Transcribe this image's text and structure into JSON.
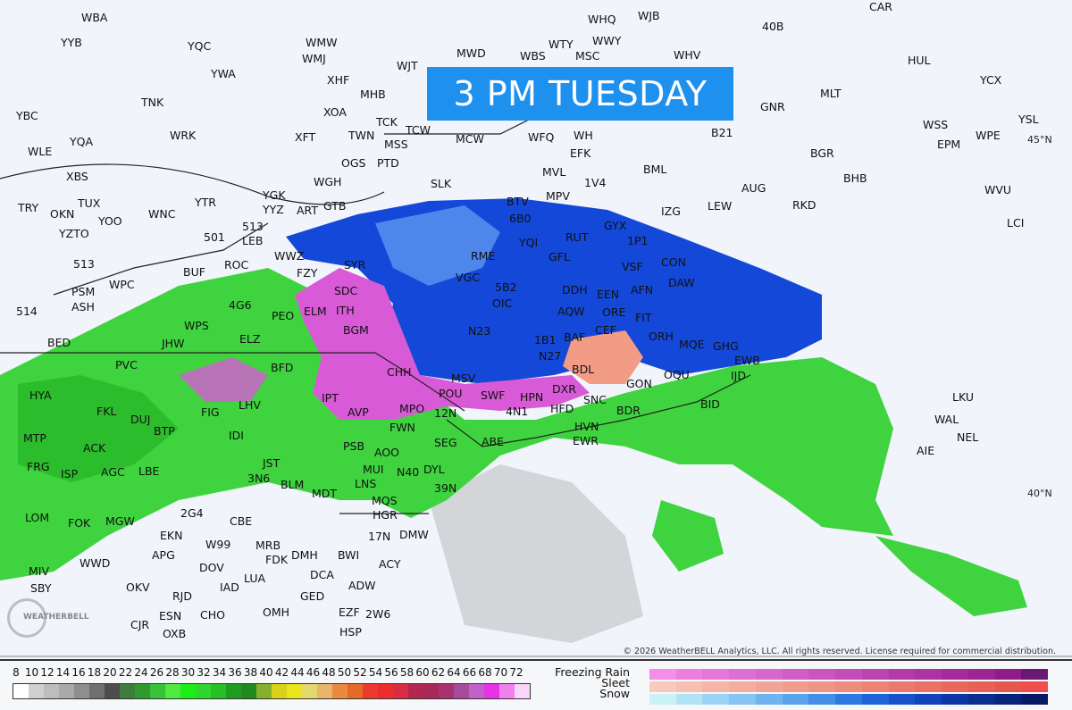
{
  "title": "3 PM TUESDAY",
  "copyright": "© 2026 WeatherBELL Analytics, LLC. All rights reserved. License required for commercial distribution.",
  "logo_text": "WeatherBELL",
  "latitude_labels": [
    "45°N",
    "40°N"
  ],
  "stations": [
    "WBA",
    "YYB",
    "YQC",
    "WMW",
    "WMJ",
    "YWA",
    "XHF",
    "MHB",
    "WJT",
    "MWD",
    "WHQ",
    "WJB",
    "WTY",
    "WWY",
    "WBS",
    "MSC",
    "WHV",
    "CAR",
    "40B",
    "HUL",
    "YCX",
    "TNK",
    "XOA",
    "TCK",
    "WH",
    "MLT",
    "GNR",
    "YSL",
    "YBC",
    "YQA",
    "WRK",
    "XFT",
    "TWN",
    "MSS",
    "TCW",
    "MCW",
    "WFQ",
    "EFK",
    "B21",
    "BGR",
    "WSS",
    "EPM",
    "WPE",
    "WLE",
    "XBS",
    "OGS",
    "PTD",
    "BML",
    "BHB",
    "WVU",
    "TRY",
    "OKN",
    "TUX",
    "YOO",
    "WNC",
    "YTR",
    "YGK",
    "WGH",
    "GTB",
    "SLK",
    "BTV",
    "MVL",
    "MPV",
    "1V4",
    "AUG",
    "LEW",
    "RKD",
    "YYZ",
    "YZTO",
    "ART",
    "513",
    "501",
    "6B0",
    "IZG",
    "GYX",
    "1P1",
    "LCI",
    "YQI",
    "RUT",
    "LEB",
    "513",
    "WWZ",
    "FZY",
    "SYR",
    "RME",
    "GFL",
    "VSF",
    "CON",
    "DAW",
    "PSM",
    "WPC",
    "BUF",
    "ROC",
    "SDC",
    "VGC",
    "5B2",
    "DDH",
    "EEN",
    "AFN",
    "ASH",
    "514",
    "WPS",
    "4G6",
    "PEO",
    "ITH",
    "OIC",
    "AQW",
    "ORE",
    "FIT",
    "BED",
    "JHW",
    "ELZ",
    "ELM",
    "BGM",
    "N23",
    "1B1",
    "BAF",
    "CEF",
    "ORH",
    "MQE",
    "GHG",
    "PVC",
    "BFD",
    "N27",
    "BDL",
    "IJD",
    "CHH",
    "MSV",
    "POU",
    "SWF",
    "DXR",
    "HFD",
    "SNC",
    "GON",
    "OQU",
    "EWB",
    "HYA",
    "FKL",
    "DUJ",
    "FIG",
    "LHV",
    "IPT",
    "AVP",
    "MPO",
    "FWN",
    "12N",
    "4N1",
    "HPN",
    "BDR",
    "HVN",
    "BID",
    "MTP",
    "ACK",
    "BTP",
    "IDI",
    "PSB",
    "SEG",
    "ABE",
    "EWR",
    "FRG",
    "ISP",
    "AGC",
    "LBE",
    "JST",
    "AOO",
    "MUI",
    "N40",
    "DYL",
    "39N",
    "3N6",
    "BLM",
    "MDT",
    "LNS",
    "MQS",
    "LOM",
    "FOK",
    "MGW",
    "2G4",
    "CBE",
    "HGR",
    "DMW",
    "17N",
    "ACY",
    "MIV",
    "WWD",
    "EKN",
    "W99",
    "MRB",
    "FDK",
    "DMH",
    "BWI",
    "APG",
    "DOV",
    "OKV",
    "IAD",
    "LUA",
    "DCA",
    "ADW",
    "RJD",
    "GED",
    "CJR",
    "ESN",
    "CHO",
    "OMH",
    "EZF",
    "2W6",
    "SBY",
    "OXB",
    "HSP",
    "LKU",
    "WAL",
    "NEL",
    "AIE"
  ],
  "dbz_legend": {
    "labels": [
      "8",
      "10",
      "12",
      "14",
      "16",
      "18",
      "20",
      "22",
      "24",
      "26",
      "28",
      "30",
      "32",
      "34",
      "36",
      "38",
      "40",
      "42",
      "44",
      "46",
      "48",
      "50",
      "52",
      "54",
      "56",
      "58",
      "60",
      "62",
      "64",
      "66",
      "68",
      "70",
      "72"
    ],
    "colors": [
      "#ffffff",
      "#cfcfcf",
      "#bdbdbd",
      "#a9a9a9",
      "#8e8e8e",
      "#6f6f6f",
      "#4d4d4d",
      "#3e7d3e",
      "#2f9a2f",
      "#39c139",
      "#4fe93f",
      "#19ee19",
      "#2dd62d",
      "#27bf27",
      "#209c20",
      "#208a20",
      "#87b02a",
      "#d9d11a",
      "#eae41c",
      "#e3d96b",
      "#e8b56a",
      "#e98a3c",
      "#e66a27",
      "#ec3a2c",
      "#ed2d2d",
      "#d92c43",
      "#b42550",
      "#a8285a",
      "#a93170",
      "#a84a9b",
      "#c160c6",
      "#e633e6",
      "#f07ff0",
      "#f9d6f9"
    ]
  },
  "ptype_legend": {
    "freezing_rain": {
      "label": "Freezing Rain",
      "colors": [
        "#f48ee6",
        "#ec7fe0",
        "#e676d9",
        "#dd6ed3",
        "#d867cd",
        "#d15dc6",
        "#ca55c0",
        "#c24db8",
        "#bb44b1",
        "#b33ba9",
        "#ac33a3",
        "#a52b9c",
        "#9e2395",
        "#8e1d8a",
        "#6b1872"
      ]
    },
    "sleet": {
      "label": "Sleet",
      "colors": [
        "#f8c9bd",
        "#f7c0b2",
        "#f5b6a8",
        "#f4ae9f",
        "#f2a597",
        "#f19d8e",
        "#ef9486",
        "#ee8c7e",
        "#ec8375",
        "#ea7a6d",
        "#e97165",
        "#e7695d",
        "#e66055",
        "#e5584e",
        "#f04e4e"
      ]
    },
    "snow": {
      "label": "Snow",
      "colors": [
        "#c9f1f6",
        "#b1e3f6",
        "#9bd3f4",
        "#86c4f2",
        "#6fb3ef",
        "#5aa2ec",
        "#448ee8",
        "#2f78e4",
        "#1f63db",
        "#1650cd",
        "#1042bb",
        "#0c36a6",
        "#0a2d91",
        "#07247c",
        "#051a66"
      ]
    }
  },
  "precip_colors": {
    "rain": "#3fd43f",
    "rain_heavy": "#1fae1f",
    "snow": "#1448d8",
    "snow_light": "#4f86ec",
    "freezing_rain": "#d85ad6",
    "sleet": "#f29c86",
    "light": "#9a9a9a"
  }
}
